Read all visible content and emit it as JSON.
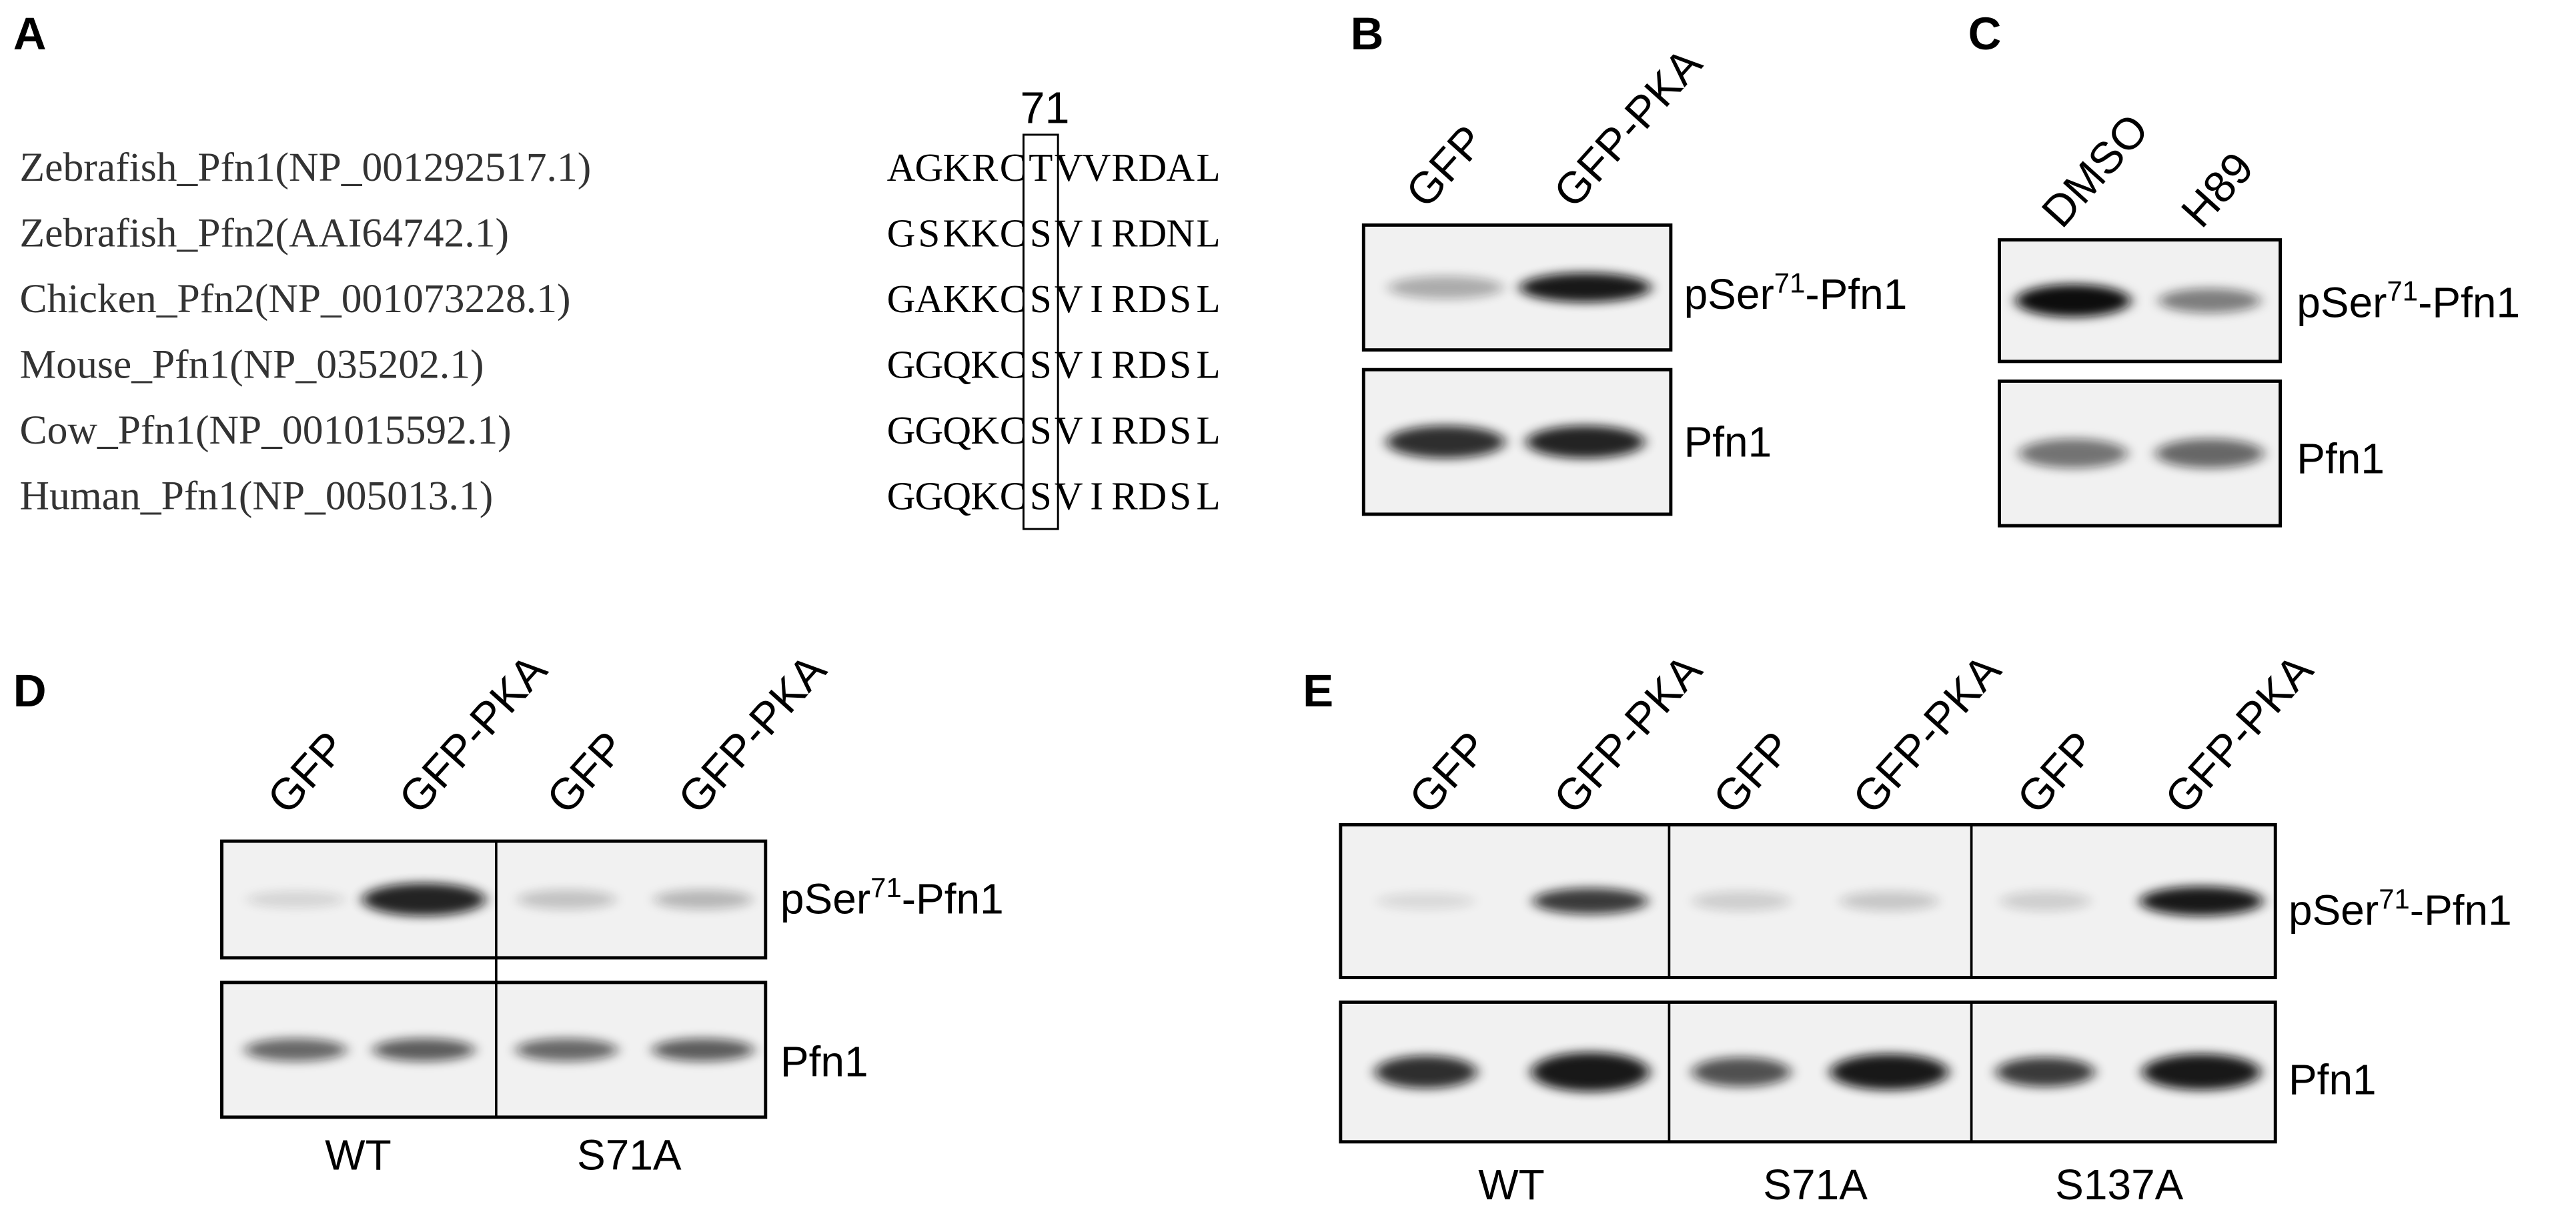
{
  "panels": [
    "A",
    "B",
    "C",
    "D",
    "E"
  ],
  "alignment": {
    "position": "71",
    "rows": [
      {
        "name": "Zebrafish_Pfn1(NP_001292517.1)",
        "residues": [
          "A",
          "G",
          "K",
          "R",
          "C",
          "T",
          "V",
          "V",
          "R",
          "D",
          "A",
          "L"
        ]
      },
      {
        "name": "Zebrafish_Pfn2(AAI64742.1)",
        "residues": [
          "G",
          "S",
          "K",
          "K",
          "C",
          "S",
          "V",
          "I",
          "R",
          "D",
          "N",
          "L"
        ]
      },
      {
        "name": "Chicken_Pfn2(NP_001073228.1)",
        "residues": [
          "G",
          "A",
          "K",
          "K",
          "C",
          "S",
          "V",
          "I",
          "R",
          "D",
          "S",
          "L"
        ]
      },
      {
        "name": "Mouse_Pfn1(NP_035202.1)",
        "residues": [
          "G",
          "G",
          "Q",
          "K",
          "C",
          "S",
          "V",
          "I",
          "R",
          "D",
          "S",
          "L"
        ]
      },
      {
        "name": "Cow_Pfn1(NP_001015592.1)",
        "residues": [
          "G",
          "G",
          "Q",
          "K",
          "C",
          "S",
          "V",
          "I",
          "R",
          "D",
          "S",
          "L"
        ]
      },
      {
        "name": "Human_Pfn1(NP_005013.1)",
        "residues": [
          "G",
          "G",
          "Q",
          "K",
          "C",
          "S",
          "V",
          "I",
          "R",
          "D",
          "S",
          "L"
        ]
      }
    ]
  },
  "blot_labels": {
    "phospho": {
      "prefix": "pSer",
      "superscript": "71",
      "suffix": "-Pfn1"
    },
    "total": "Pfn1"
  },
  "panel_b": {
    "lanes": [
      "GFP",
      "GFP-PKA"
    ]
  },
  "panel_c": {
    "lanes": [
      "DMSO",
      "H89"
    ]
  },
  "panel_d": {
    "lanes": [
      "GFP",
      "GFP-PKA",
      "GFP",
      "GFP-PKA"
    ],
    "groups": [
      "WT",
      "S71A"
    ]
  },
  "panel_e": {
    "lanes": [
      "GFP",
      "GFP-PKA",
      "GFP",
      "GFP-PKA",
      "GFP",
      "GFP-PKA"
    ],
    "groups": [
      "WT",
      "S71A",
      "S137A"
    ]
  }
}
